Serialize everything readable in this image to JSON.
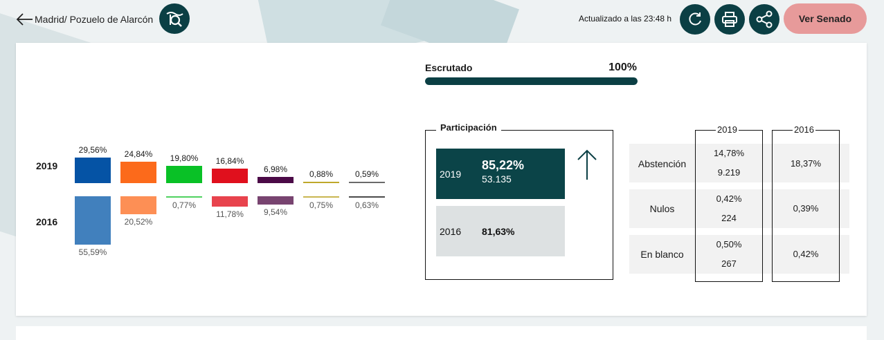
{
  "header": {
    "location": "Madrid/ Pozuelo de Alarcón",
    "updated": "Actualizado a las 23:48 h",
    "senado_button": "Ver Senado"
  },
  "results": {
    "year_2019": "2019",
    "year_2016": "2016",
    "parties": [
      {
        "color_2019": "#0553a5",
        "color_2016": "#4180bd",
        "pct_2019": "29,56%",
        "pct_2016": "55,59%",
        "value_2019": 29.56,
        "value_2016": 55.59
      },
      {
        "color_2019": "#fc6a1b",
        "color_2016": "#fd8f55",
        "pct_2019": "24,84%",
        "pct_2016": "20,52%",
        "value_2019": 24.84,
        "value_2016": 20.52
      },
      {
        "color_2019": "#09c126",
        "color_2016": "#4fd15f",
        "pct_2019": "19,80%",
        "pct_2016": "0,77%",
        "value_2019": 19.8,
        "value_2016": 0.77
      },
      {
        "color_2019": "#e0101d",
        "color_2016": "#e8434d",
        "pct_2019": "16,84%",
        "pct_2016": "11,78%",
        "value_2019": 16.84,
        "value_2016": 11.78
      },
      {
        "color_2019": "#4b0a47",
        "color_2016": "#784470",
        "pct_2019": "6,98%",
        "pct_2016": "9,54%",
        "value_2019": 6.98,
        "value_2016": 9.54
      },
      {
        "color_2019": "#bfa82a",
        "color_2016": "#c9b650",
        "pct_2019": "0,88%",
        "pct_2016": "0,75%",
        "value_2019": 0.88,
        "value_2016": 0.75
      },
      {
        "color_2019": "#6a6a6a",
        "color_2016": "#4a4a4a",
        "pct_2019": "0,59%",
        "pct_2016": "0,63%",
        "value_2019": 0.59,
        "value_2016": 0.63
      }
    ]
  },
  "escrutado": {
    "label": "Escrutado",
    "value": "100%",
    "fraction": 1.0
  },
  "participacion": {
    "title": "Participación",
    "y2019": {
      "year": "2019",
      "pct": "85,22%",
      "votes": "53.135"
    },
    "y2016": {
      "year": "2016",
      "pct": "81,63%"
    }
  },
  "table": {
    "col_2019": "2019",
    "col_2016": "2016",
    "rows": [
      {
        "label": "Abstención",
        "pct_2019": "14,78%",
        "num_2019": "9.219",
        "pct_2016": "18,37%"
      },
      {
        "label": "Nulos",
        "pct_2019": "0,42%",
        "num_2019": "224",
        "pct_2016": "0,39%"
      },
      {
        "label": "En blanco",
        "pct_2019": "0,50%",
        "num_2019": "267",
        "pct_2016": "0,42%"
      }
    ]
  },
  "icons": {
    "back": "arrow-left-icon",
    "logo": "search-logo-icon",
    "refresh": "refresh-icon",
    "print": "print-icon",
    "share": "share-icon",
    "trend": "arrow-up-icon"
  }
}
